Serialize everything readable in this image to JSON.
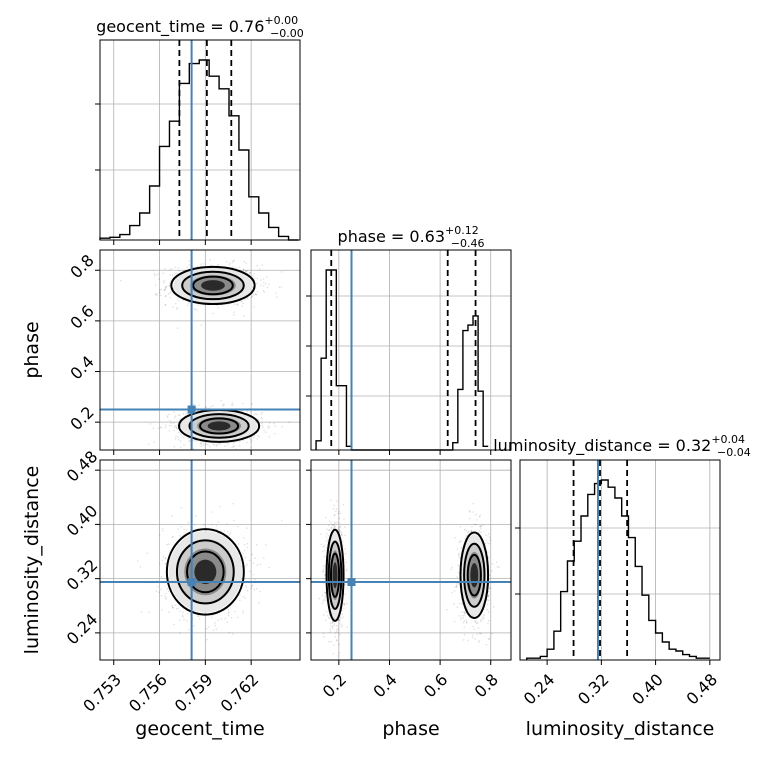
{
  "colors": {
    "truth": "#4682b4",
    "hist": "#000000",
    "grid": "#b0b0b0"
  },
  "chart_data": {
    "type": "corner",
    "parameters": [
      "geocent_time",
      "phase",
      "luminosity_distance"
    ],
    "truths": {
      "geocent_time": 0.7581,
      "phase": 0.25,
      "luminosity_distance": 0.315
    },
    "titles": [
      {
        "param": "geocent_time",
        "text": "geocent_time = 0.76",
        "plus": "+0.00",
        "minus": "−0.00"
      },
      {
        "param": "phase",
        "text": "phase = 0.63",
        "plus": "+0.12",
        "minus": "−0.46"
      },
      {
        "param": "luminosity_distance",
        "text": "luminosity_distance = 0.32",
        "plus": "+0.04",
        "minus": "−0.04"
      }
    ],
    "axes": {
      "geocent_time": {
        "range": [
          0.7521,
          0.7652
        ],
        "ticks": [
          0.753,
          0.756,
          0.759,
          0.762
        ],
        "labels": [
          "0.753",
          "0.756",
          "0.759",
          "0.762"
        ],
        "label": "geocent_time"
      },
      "phase": {
        "range": [
          0.09,
          0.88
        ],
        "ticks": [
          0.2,
          0.4,
          0.6,
          0.8
        ],
        "labels": [
          "0.2",
          "0.4",
          "0.6",
          "0.8"
        ],
        "label": "phase"
      },
      "luminosity_distance": {
        "range": [
          0.2,
          0.495
        ],
        "ticks": [
          0.24,
          0.32,
          0.4,
          0.48
        ],
        "labels": [
          "0.24",
          "0.32",
          "0.40",
          "0.48"
        ],
        "label": "luminosity_distance"
      }
    },
    "diag_ticks": {
      "geocent_time": [
        0.35,
        0.68
      ],
      "phase": [
        0.77,
        0.52,
        0.27
      ],
      "luminosity_distance": [
        0.33,
        0.66
      ]
    },
    "histograms": {
      "geocent_time": {
        "edges": [
          0.7521,
          0.75275,
          0.7534,
          0.75405,
          0.7547,
          0.75535,
          0.756,
          0.75665,
          0.7573,
          0.75795,
          0.7586,
          0.75925,
          0.7599,
          0.76055,
          0.7612,
          0.76185,
          0.7625,
          0.76315,
          0.7638,
          0.76445,
          0.7651
        ],
        "counts": [
          0.01,
          0.015,
          0.03,
          0.08,
          0.15,
          0.3,
          0.52,
          0.66,
          0.87,
          0.98,
          1.0,
          0.91,
          0.84,
          0.69,
          0.5,
          0.24,
          0.15,
          0.07,
          0.02,
          0.0
        ],
        "quantiles": [
          0.7573,
          0.7591,
          0.7607
        ]
      },
      "phase": {
        "edges": [
          0.11,
          0.13,
          0.15,
          0.17,
          0.19,
          0.21,
          0.23,
          0.25,
          0.27,
          0.29,
          0.65,
          0.67,
          0.69,
          0.71,
          0.73,
          0.75,
          0.77,
          0.79
        ],
        "counts": [
          0.05,
          0.5,
          0.98,
          0.98,
          0.35,
          0.35,
          0.02,
          0.0,
          0.0,
          0.0,
          0.04,
          0.33,
          0.65,
          0.68,
          0.73,
          0.32,
          0.02
        ],
        "quantiles": [
          0.17,
          0.63,
          0.74
        ]
      },
      "luminosity_distance": {
        "edges": [
          0.21,
          0.22,
          0.23,
          0.24,
          0.25,
          0.26,
          0.27,
          0.28,
          0.29,
          0.3,
          0.31,
          0.32,
          0.33,
          0.34,
          0.35,
          0.36,
          0.37,
          0.38,
          0.39,
          0.4,
          0.41,
          0.42,
          0.43,
          0.44,
          0.45,
          0.46,
          0.47,
          0.48
        ],
        "counts": [
          0.01,
          0.01,
          0.02,
          0.06,
          0.16,
          0.38,
          0.55,
          0.66,
          0.8,
          0.92,
          0.98,
          1.0,
          0.96,
          0.9,
          0.8,
          0.68,
          0.52,
          0.36,
          0.22,
          0.15,
          0.1,
          0.06,
          0.05,
          0.03,
          0.02,
          0.01,
          0.01
        ],
        "quantiles": [
          0.279,
          0.318,
          0.358
        ]
      }
    },
    "contours_2d": [
      {
        "x": "geocent_time",
        "y": "phase",
        "modes": [
          {
            "cx": 0.7595,
            "cy": 0.74,
            "sx": 0.0013,
            "sy": 0.035
          },
          {
            "cx": 0.7599,
            "cy": 0.185,
            "sx": 0.00125,
            "sy": 0.03
          }
        ]
      },
      {
        "x": "geocent_time",
        "y": "luminosity_distance",
        "modes": [
          {
            "cx": 0.759,
            "cy": 0.33,
            "sx": 0.0012,
            "sy": 0.03
          }
        ]
      },
      {
        "x": "phase",
        "y": "luminosity_distance",
        "modes": [
          {
            "cx": 0.185,
            "cy": 0.325,
            "sx": 0.016,
            "sy": 0.032
          },
          {
            "cx": 0.735,
            "cy": 0.325,
            "sx": 0.026,
            "sy": 0.03
          }
        ]
      }
    ]
  }
}
